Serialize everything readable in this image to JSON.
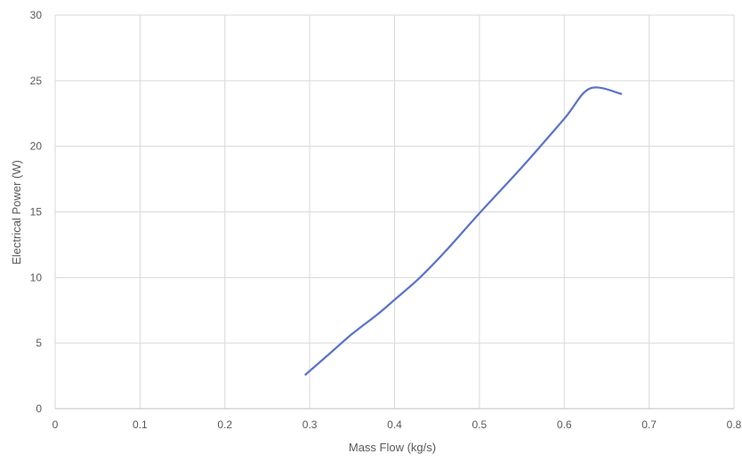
{
  "chart_data": {
    "type": "line",
    "title": "",
    "xlabel": "Mass Flow (kg/s)",
    "ylabel": "Electrical Power (W)",
    "xlim": [
      0,
      0.8
    ],
    "ylim": [
      0,
      30
    ],
    "x_ticks": [
      "0",
      "0.1",
      "0.2",
      "0.3",
      "0.4",
      "0.5",
      "0.6",
      "0.7",
      "0.8"
    ],
    "y_ticks": [
      "0",
      "5",
      "10",
      "15",
      "20",
      "25",
      "30"
    ],
    "grid": true,
    "legend": "none",
    "series": [
      {
        "color": "#5B73C9",
        "x": [
          0.295,
          0.32,
          0.35,
          0.38,
          0.4,
          0.43,
          0.46,
          0.5,
          0.55,
          0.6,
          0.63,
          0.667
        ],
        "y": [
          2.6,
          4.0,
          5.7,
          7.2,
          8.3,
          10.0,
          12.0,
          14.9,
          18.4,
          22.1,
          24.4,
          24.0
        ]
      }
    ]
  }
}
